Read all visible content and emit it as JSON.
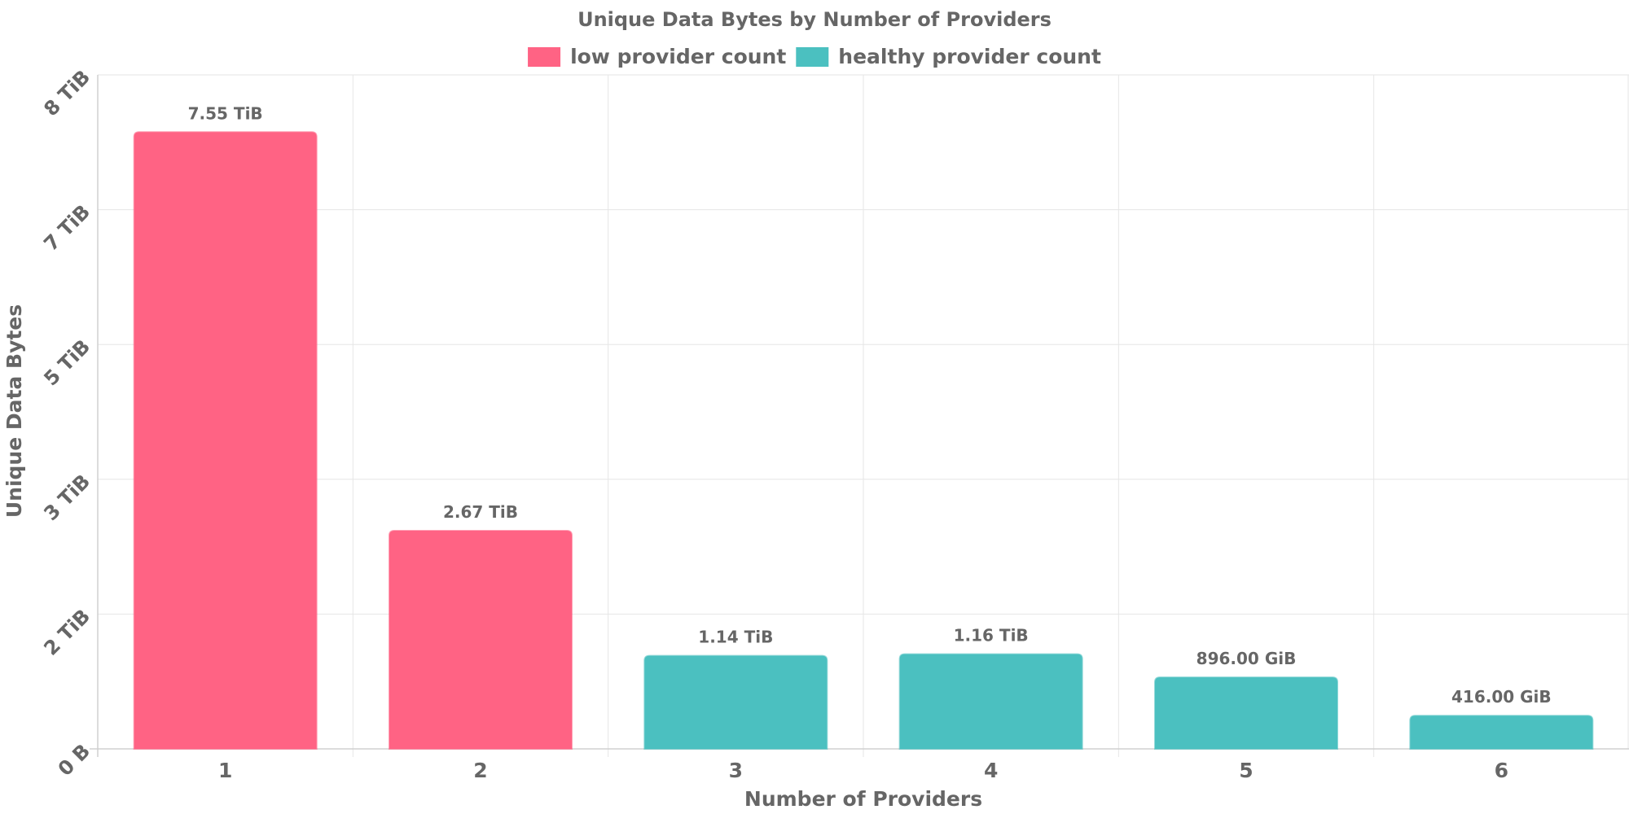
{
  "chart_data": {
    "type": "bar",
    "title": "Unique Data Bytes by Number of Providers",
    "xlabel": "Number of Providers",
    "ylabel": "Unique Data Bytes",
    "categories": [
      "1",
      "2",
      "3",
      "4",
      "5",
      "6"
    ],
    "values_tib": [
      7.55,
      2.67,
      1.14,
      1.16,
      0.875,
      0.40625
    ],
    "value_labels": [
      "7.55 TiB",
      "2.67 TiB",
      "1.14 TiB",
      "1.16 TiB",
      "896.00 GiB",
      "416.00 GiB"
    ],
    "bar_series": [
      "low provider count",
      "low provider count",
      "healthy provider count",
      "healthy provider count",
      "healthy provider count",
      "healthy provider count"
    ],
    "legend": [
      {
        "name": "low provider count",
        "color": "#ff6384"
      },
      {
        "name": "healthy provider count",
        "color": "#4bc0c0"
      }
    ],
    "y_ticks": [
      {
        "label": "0 B",
        "value": 0
      },
      {
        "label": "2 TiB",
        "value": 1.65
      },
      {
        "label": "3 TiB",
        "value": 3.3
      },
      {
        "label": "5 TiB",
        "value": 4.95
      },
      {
        "label": "7 TiB",
        "value": 6.6
      },
      {
        "label": "8 TiB",
        "value": 8.25
      }
    ],
    "ylim": [
      0,
      8.25
    ],
    "legend_position": "top-center",
    "grid": true
  }
}
